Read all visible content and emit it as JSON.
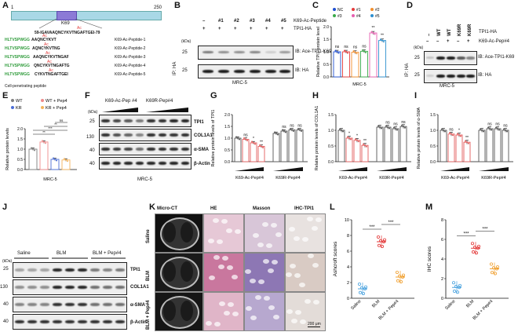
{
  "panels": {
    "A": "A",
    "B": "B",
    "C": "C",
    "D": "D",
    "E": "E",
    "F": "F",
    "G": "G",
    "H": "H",
    "I": "I",
    "J": "J",
    "K": "K",
    "L": "L",
    "M": "M"
  },
  "A": {
    "start": "1",
    "end": "250",
    "site": "K69",
    "seq": "59-IGAVAAQNCYKVTNGAFTGEI-79",
    "cpp_label": "Cell-penetrating peptide",
    "rows": [
      {
        "cpp": "HLTVSPWGG",
        "seq": "AAQNCYKVT",
        "name": "K69-Ac-Peptide-1"
      },
      {
        "cpp": "HLTVSPWGG",
        "seq": "AQNCYKVTNG",
        "name": "K69-Ac-Peptide-2"
      },
      {
        "cpp": "HLTVSPWGG",
        "seq": "AAQNCYKVTNGAF",
        "name": "K69-Ac-Peptide-3"
      },
      {
        "cpp": "HLTVSPWGG",
        "seq": "QNCYKVTNGAFTG",
        "name": "K69-Ac-Peptide-4"
      },
      {
        "cpp": "HLTVSPWGG",
        "seq": "CYKVTNGAFTGEI",
        "name": "K69-Ac-Peptide-5"
      }
    ],
    "ac": "Ac"
  },
  "B": {
    "cols": [
      "–",
      "#1",
      "#2",
      "#3",
      "#4",
      "#5"
    ],
    "row1_label": "K69-Ac-Peptide",
    "row2": [
      "+",
      "+",
      "+",
      "+",
      "+",
      "+"
    ],
    "row2_label": "TPI1-HA",
    "kda": "(kDa)",
    "mw": [
      "25",
      "25"
    ],
    "ip": "IP: HA",
    "blots": [
      "IB: Ace-TPI1-K69",
      "IB: HA"
    ],
    "cell": "MRC-5"
  },
  "C": {
    "legend": [
      "NC",
      "#1",
      "#2",
      "#3",
      "#4",
      "#5"
    ],
    "ylabel": "Relative TPI1 protein level",
    "xlabel": "MRC-5",
    "yticks": [
      "0.0",
      "0.5",
      "1.0",
      "1.5",
      "2.0"
    ],
    "sig": [
      "ns",
      "ns",
      "ns",
      "ns",
      "**",
      "**"
    ]
  },
  "chart_data": [
    {
      "panel": "C",
      "type": "bar",
      "categories": [
        "NC",
        "#1",
        "#2",
        "#3",
        "#4",
        "#5"
      ],
      "values": [
        1.0,
        1.0,
        0.98,
        1.02,
        1.75,
        1.45
      ],
      "ylim": [
        0,
        2.0
      ],
      "ylabel": "Relative TPI1 protein level",
      "xlabel": "MRC-5"
    },
    {
      "panel": "E",
      "type": "bar",
      "categories": [
        "WT",
        "KR",
        "WT + Pep4",
        "KR + Pep4"
      ],
      "values": [
        1.0,
        1.35,
        0.5,
        0.47
      ],
      "ylim": [
        0,
        2.0
      ],
      "ylabel": "Relative protein levels",
      "xlabel": "MRC-5"
    },
    {
      "panel": "G",
      "type": "bar",
      "categories": [
        "K69-Ac-Pep#4 1",
        "K69-Ac-Pep#4 2",
        "K69-Ac-Pep#4 3",
        "K69-Ac-Pep#4 4",
        "K69R-Pep#4 1",
        "K69R-Pep#4 2",
        "K69R-Pep#4 3",
        "K69R-Pep#4 4"
      ],
      "values": [
        1.0,
        0.95,
        0.8,
        0.65,
        1.2,
        1.3,
        1.35,
        1.35
      ],
      "ylim": [
        0,
        2.0
      ],
      "ylabel": "Relative protein levels of TPI1"
    },
    {
      "panel": "H",
      "type": "bar",
      "categories": [
        "K69-Ac-Pep#4 1",
        "K69-Ac-Pep#4 2",
        "K69-Ac-Pep#4 3",
        "K69-Ac-Pep#4 4",
        "K69R-Pep#4 1",
        "K69R-Pep#4 2",
        "K69R-Pep#4 3",
        "K69R-Pep#4 4"
      ],
      "values": [
        1.0,
        0.75,
        0.68,
        0.52,
        1.1,
        1.1,
        1.05,
        1.12
      ],
      "ylim": [
        0,
        1.5
      ],
      "ylabel": "Relative protein levels of COL1A1"
    },
    {
      "panel": "I",
      "type": "bar",
      "categories": [
        "K69-Ac-Pep#4 1",
        "K69-Ac-Pep#4 2",
        "K69-Ac-Pep#4 3",
        "K69-Ac-Pep#4 4",
        "K69R-Pep#4 1",
        "K69R-Pep#4 2",
        "K69R-Pep#4 3",
        "K69R-Pep#4 4"
      ],
      "values": [
        1.0,
        0.88,
        0.85,
        0.62,
        1.0,
        1.05,
        1.05,
        1.0
      ],
      "ylim": [
        0,
        1.5
      ],
      "ylabel": "Relative protein levels of α-SMA"
    },
    {
      "panel": "L",
      "type": "scatter",
      "categories": [
        "Saline",
        "BLM",
        "BLM + Pep#4"
      ],
      "values": [
        1.2,
        7.2,
        2.7
      ],
      "ylim": [
        0,
        10
      ],
      "ylabel": "Ashcroft scores"
    },
    {
      "panel": "M",
      "type": "scatter",
      "categories": [
        "Saline",
        "BLM",
        "BLM + Pep#4"
      ],
      "values": [
        1.1,
        5.1,
        3.0
      ],
      "ylim": [
        0,
        8
      ],
      "ylabel": "IHC scores"
    }
  ],
  "D": {
    "cols": [
      "–",
      "WT",
      "WT",
      "K69R",
      "K69R"
    ],
    "row1_label": "TPI1-HA",
    "row2": [
      "–",
      "–",
      "+",
      "–",
      "+"
    ],
    "row2_label": "K69-Ac-Pep#4",
    "kda": "(kDa)",
    "mw": [
      "25",
      "25"
    ],
    "ip": "IP: HA",
    "blots": [
      "IB: Ace-TPI1-K69",
      "IB: HA"
    ],
    "cell": "MRC-5"
  },
  "E": {
    "legend": [
      "WT",
      "WT + Pep4",
      "KR",
      "KR + Pep4"
    ],
    "ylabel": "Relative protein levels",
    "xlabel": "MRC-5",
    "yticks": [
      "0.0",
      "0.5",
      "1.0",
      "1.5",
      "2.0"
    ],
    "sig": [
      "**",
      "***",
      "**",
      "ns"
    ]
  },
  "F": {
    "groups": [
      "K69-Ac-Pep #4",
      "K69R-Pep#4"
    ],
    "kda": "(kDa)",
    "mw": [
      "25",
      "130",
      "40",
      "40"
    ],
    "blots": [
      "TPI1",
      "COL1A1",
      "α-SMA",
      "β-Actin"
    ],
    "cell": "MRC-5"
  },
  "G": {
    "ylabel": "Relative protein levels of TPI1",
    "groups": [
      "K69-Ac-Pep#4",
      "K69R-Pep#4"
    ],
    "yticks": [
      "0.0",
      "0.5",
      "1.0",
      "1.5",
      "2.0"
    ],
    "sig": [
      "ns",
      "*",
      "**",
      "ns",
      "ns",
      "ns"
    ]
  },
  "H": {
    "ylabel": "Relative protein levels of COL1A1",
    "groups": [
      "K69-Ac-Pep#4",
      "K69R-Pep#4"
    ],
    "yticks": [
      "0.0",
      "0.5",
      "1.0",
      "1.5"
    ],
    "sig": [
      "*",
      "*",
      "**",
      "ns",
      "ns",
      "ns"
    ]
  },
  "I": {
    "ylabel": "Relative protein levels of α-SMA",
    "groups": [
      "K69-Ac-Pep#4",
      "K69R-Pep#4"
    ],
    "yticks": [
      "0.0",
      "0.5",
      "1.0",
      "1.5"
    ],
    "sig": [
      "ns",
      "*",
      "**",
      "ns",
      "ns",
      "ns"
    ]
  },
  "J": {
    "groups": [
      "Saline",
      "BLM",
      "BLM + Pep#4"
    ],
    "kda": "(kDa)",
    "mw": [
      "25",
      "130",
      "40",
      "40"
    ],
    "blots": [
      "TPI1",
      "COL1A1",
      "α-SMA",
      "β-Actin"
    ]
  },
  "K": {
    "cols": [
      "Micro-CT",
      "HE",
      "Masson",
      "IHC-TPI1"
    ],
    "rows": [
      "Saline",
      "BLM",
      "BLM + Pep#4"
    ],
    "scale": "200 μm"
  },
  "L": {
    "ylabel": "Ashcroft scores",
    "yticks": [
      "0",
      "2",
      "4",
      "6",
      "8",
      "10"
    ],
    "xcats": [
      "Saline",
      "BLM",
      "BLM + Pep#4"
    ],
    "sig": [
      "***",
      "***"
    ]
  },
  "M": {
    "ylabel": "IHC scores",
    "yticks": [
      "0",
      "2",
      "4",
      "6",
      "8"
    ],
    "xcats": [
      "Saline",
      "BLM",
      "BLM + Pep#4"
    ],
    "sig": [
      "***",
      "***"
    ]
  }
}
